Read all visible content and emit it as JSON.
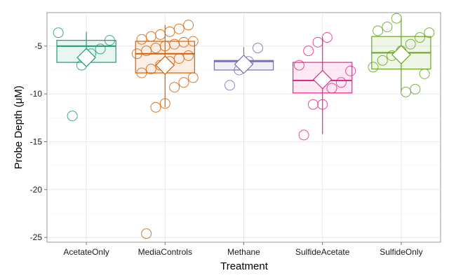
{
  "chart_data": {
    "type": "box",
    "xlabel": "Treatment",
    "ylabel": "Probe Depth (μM)",
    "ylim": [
      -25.5,
      -1.5
    ],
    "yticks": [
      -25,
      -20,
      -15,
      -10,
      -5
    ],
    "ytick_labels": [
      "-25",
      "-20",
      "-15",
      "-10",
      "-5"
    ],
    "grid": true,
    "legend": "none",
    "categories": [
      "AcetateOnly",
      "MediaControls",
      "Methane",
      "SulfideAcetate",
      "SulfideOnly"
    ],
    "series": [
      {
        "color": "#1b9e77",
        "box": {
          "q1": -6.7,
          "median": -5.0,
          "q3": -4.4,
          "whisker_low": -6.7,
          "whisker_high": -3.5
        },
        "mean": -6.2,
        "points": [
          -3.6,
          -4.4,
          -5.3,
          -5.8,
          -7.0,
          -12.3
        ]
      },
      {
        "color": "#d95f02",
        "box": {
          "q1": -7.8,
          "median": -5.8,
          "q3": -4.5,
          "whisker_low": -11.4,
          "whisker_high": -2.8
        },
        "mean": -7.0,
        "points": [
          -2.8,
          -3.2,
          -3.5,
          -3.8,
          -4.0,
          -4.3,
          -4.5,
          -4.6,
          -4.8,
          -5.0,
          -5.2,
          -5.5,
          -5.8,
          -6.0,
          -6.3,
          -6.6,
          -7.0,
          -7.4,
          -7.8,
          -8.3,
          -8.8,
          -9.3,
          -11.0,
          -11.4,
          -24.6
        ]
      },
      {
        "color": "#7570b3",
        "box": {
          "q1": -7.5,
          "median": -6.6,
          "q3": -6.5,
          "whisker_low": -7.6,
          "whisker_high": -5.1
        },
        "mean": -6.9,
        "points": [
          -5.2,
          -6.6,
          -7.5,
          -9.1
        ]
      },
      {
        "color": "#e7298a",
        "box": {
          "q1": -9.9,
          "median": -8.6,
          "q3": -6.7,
          "whisker_low": -14.2,
          "whisker_high": -4.1
        },
        "mean": -8.5,
        "points": [
          -4.1,
          -4.6,
          -5.5,
          -7.0,
          -7.6,
          -8.8,
          -9.4,
          -11.1,
          -11.1,
          -14.3
        ]
      },
      {
        "color": "#66a61e",
        "box": {
          "q1": -7.4,
          "median": -5.7,
          "q3": -4.0,
          "whisker_low": -9.8,
          "whisker_high": -2.1
        },
        "mean": -5.9,
        "points": [
          -2.1,
          -3.0,
          -3.4,
          -3.6,
          -4.1,
          -4.8,
          -5.5,
          -6.0,
          -6.5,
          -7.2,
          -7.9,
          -9.5,
          -9.8
        ]
      }
    ]
  }
}
